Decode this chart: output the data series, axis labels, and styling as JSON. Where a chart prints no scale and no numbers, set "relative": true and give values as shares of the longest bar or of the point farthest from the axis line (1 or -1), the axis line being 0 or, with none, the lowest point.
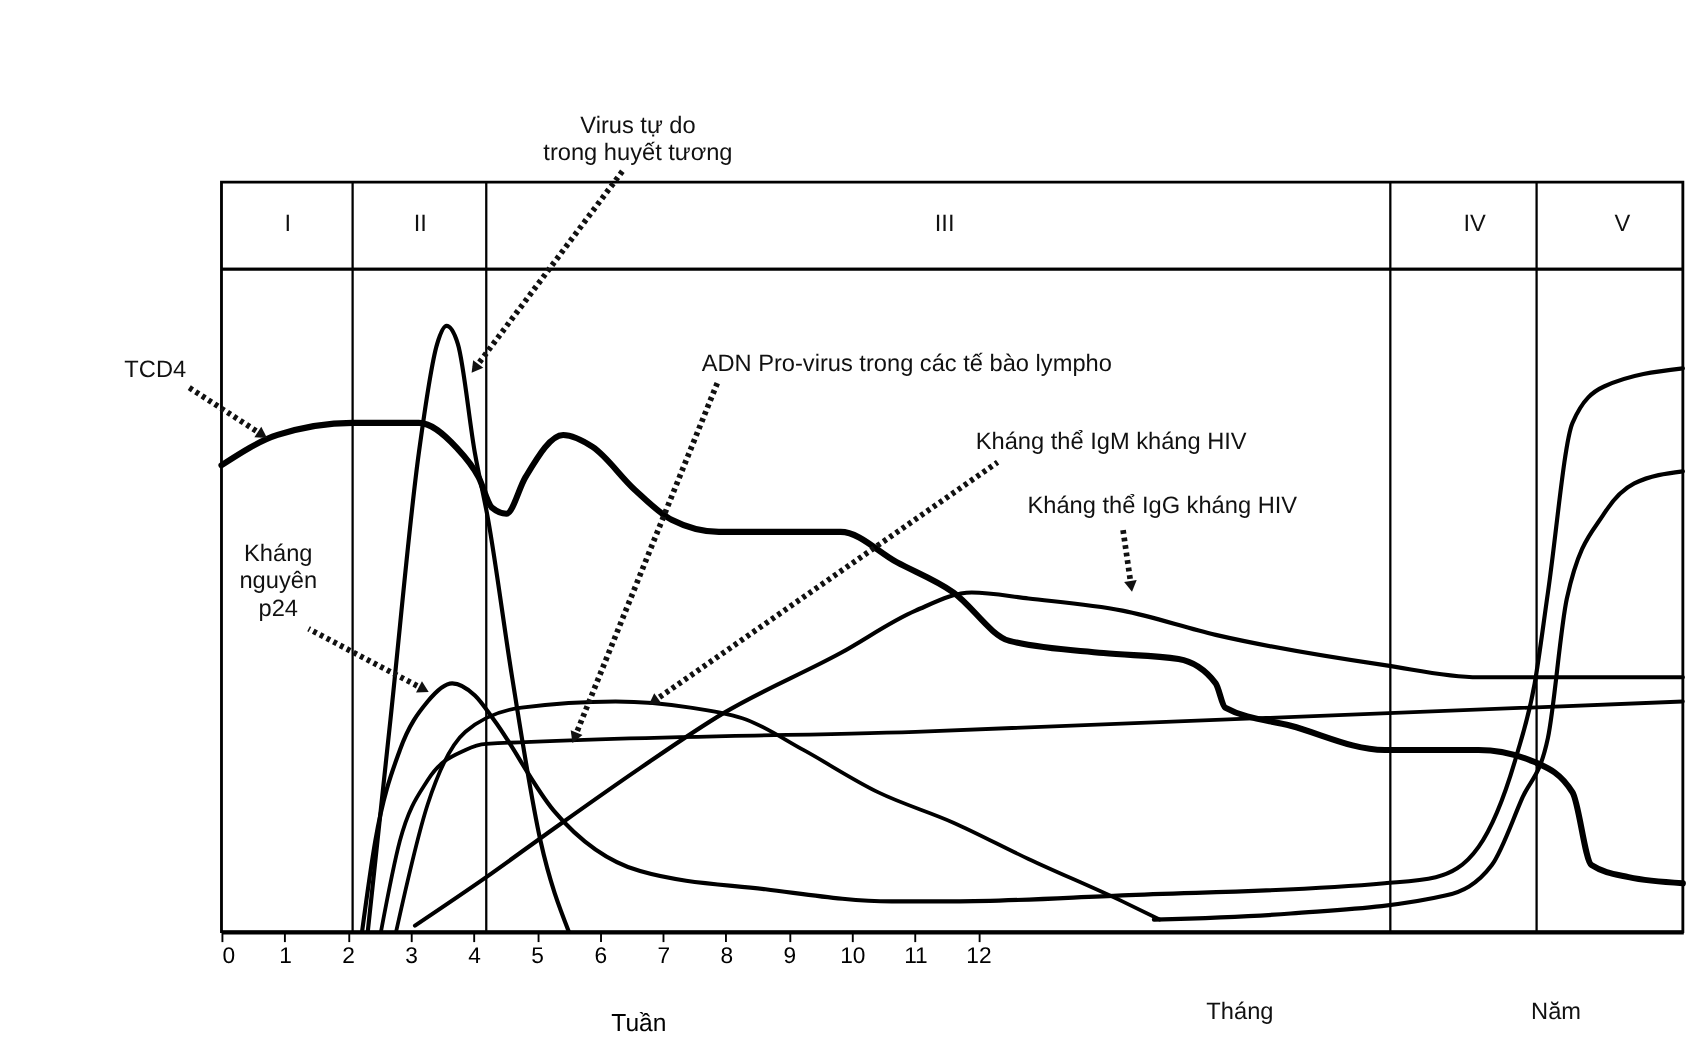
{
  "chart_data": {
    "type": "line",
    "relative": true,
    "xlabel": "Tuần",
    "xlim": [
      0,
      23.18
    ],
    "xticks": [
      0,
      1,
      2,
      3,
      4,
      5,
      6,
      7,
      8,
      9,
      10,
      11,
      12
    ],
    "grid": false,
    "marker": "none",
    "line_style": "solid",
    "ref_lines": [
      {
        "axis": "x",
        "value": 2.08
      },
      {
        "axis": "x",
        "value": 4.2
      },
      {
        "axis": "x",
        "value": 18.54
      },
      {
        "axis": "x",
        "value": 20.86
      }
    ],
    "annotations": [
      {
        "text": "TCD4",
        "x": 0.65,
        "y": 0.82
      },
      {
        "text": "Virus tự do\ntrong huyết tương",
        "x": 4.02,
        "y": 0.93
      },
      {
        "text": "ADN Pro-virus trong các tế bào lympho",
        "x": 5.6,
        "y": 0.32
      },
      {
        "text": "Kháng thể IgM kháng HIV",
        "x": 6.85,
        "y": 0.38
      },
      {
        "text": "Kháng thể IgG kháng HIV",
        "x": 14.43,
        "y": 0.57
      },
      {
        "text": "Kháng\nnguyên\np24",
        "x": 3.21,
        "y": 0.4
      },
      "Tháng",
      "Năm",
      "I",
      "II",
      "III",
      "IV",
      "V"
    ],
    "series": [
      {
        "color": "#000000",
        "x": [
          0,
          0.89,
          2.08,
          3.13,
          3.72,
          4.08,
          4.29,
          4.52,
          4.82,
          5.42,
          5.89,
          6.55,
          7.14,
          7.89,
          8.93,
          9.82,
          10.71,
          11.61,
          12.5,
          13.99,
          15.18,
          15.77,
          15.92,
          16.96,
          18.45,
          19.94,
          20.83,
          21.43,
          21.73,
          22.32,
          23.18
        ],
        "values": [
          0.77,
          0.82,
          0.84,
          0.84,
          0.8,
          0.75,
          0.7,
          0.69,
          0.75,
          0.82,
          0.8,
          0.73,
          0.68,
          0.66,
          0.66,
          0.66,
          0.61,
          0.56,
          0.48,
          0.46,
          0.45,
          0.41,
          0.37,
          0.34,
          0.3,
          0.3,
          0.28,
          0.23,
          0.11,
          0.09,
          0.08
        ]
      },
      {
        "color": "#000000",
        "x": [
          2.32,
          2.68,
          3.13,
          3.42,
          3.57,
          3.75,
          4.02,
          4.23,
          4.61,
          5.06,
          5.51,
          10,
          14.79,
          16.96,
          19.43,
          20.15,
          20.63,
          21.04,
          21.34,
          21.93,
          22.41,
          23.18
        ],
        "values": [
          0,
          0.35,
          0.79,
          0.97,
          1.0,
          0.97,
          0.79,
          0.68,
          0.42,
          0.15,
          0,
          null,
          0.02,
          0.03,
          0.06,
          0.11,
          0.22,
          0.32,
          0.55,
          0.69,
          0.74,
          0.76
        ]
      },
      {
        "color": "#000000",
        "x": [
          2.53,
          2.83,
          3.27,
          3.87,
          4.2,
          11.01,
          23.18
        ],
        "values": [
          0,
          0.15,
          0.25,
          0.3,
          0.31,
          0.33,
          0.38
        ]
      },
      {
        "color": "#000000",
        "x": [
          2.77,
          3.27,
          3.87,
          4.76,
          6.25,
          7.44,
          8.33,
          9.23,
          10.42,
          11.61,
          12.8,
          14.29,
          14.88
        ],
        "values": [
          0,
          0.21,
          0.33,
          0.37,
          0.38,
          0.37,
          0.35,
          0.3,
          0.23,
          0.18,
          0.12,
          0.05,
          0.02
        ]
      },
      {
        "color": "#000000",
        "x": [
          3.07,
          4.2,
          5.27,
          6.64,
          7.95,
          9.82,
          11.01,
          11.9,
          12.8,
          14.29,
          15.77,
          18.45,
          19.94,
          23.18
        ],
        "values": [
          0.01,
          0.09,
          0.17,
          0.27,
          0.36,
          0.46,
          0.53,
          0.56,
          0.55,
          0.53,
          0.49,
          0.44,
          0.42,
          0.42
        ]
      },
      {
        "color": "#000000",
        "x": [
          2.23,
          2.44,
          2.83,
          3.27,
          3.66,
          4.02,
          4.32,
          5.27,
          6.64,
          8.63,
          10.63,
          11.61,
          14.29,
          18.45,
          19.26,
          19.94,
          20.54,
          20.83,
          21.04,
          21.43,
          21.93,
          23.18
        ],
        "values": [
          0,
          0.15,
          0.3,
          0.38,
          0.41,
          0.39,
          0.35,
          0.2,
          0.1,
          0.07,
          0.05,
          0.05,
          0.06,
          0.08,
          0.09,
          0.14,
          0.29,
          0.41,
          0.56,
          0.84,
          0.9,
          0.93
        ]
      }
    ]
  }
}
